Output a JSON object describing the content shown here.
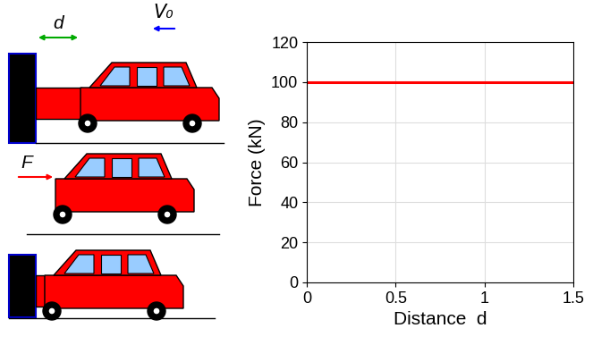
{
  "chart_data": {
    "type": "line",
    "x": [
      0,
      1.5
    ],
    "values": [
      100,
      100
    ],
    "color": "#ff0000",
    "x_label": "Distance  d",
    "y_label": "Force (kN)",
    "xlim": [
      0,
      1.5
    ],
    "xticks": [
      0,
      0.5,
      1,
      1.5
    ],
    "ylim": [
      0,
      120
    ],
    "yticks": [
      0,
      20,
      40,
      60,
      80,
      100,
      120
    ],
    "grid": true
  },
  "diagram": {
    "labels": {
      "distance": "d",
      "velocity": "V₀",
      "force": "F"
    }
  }
}
